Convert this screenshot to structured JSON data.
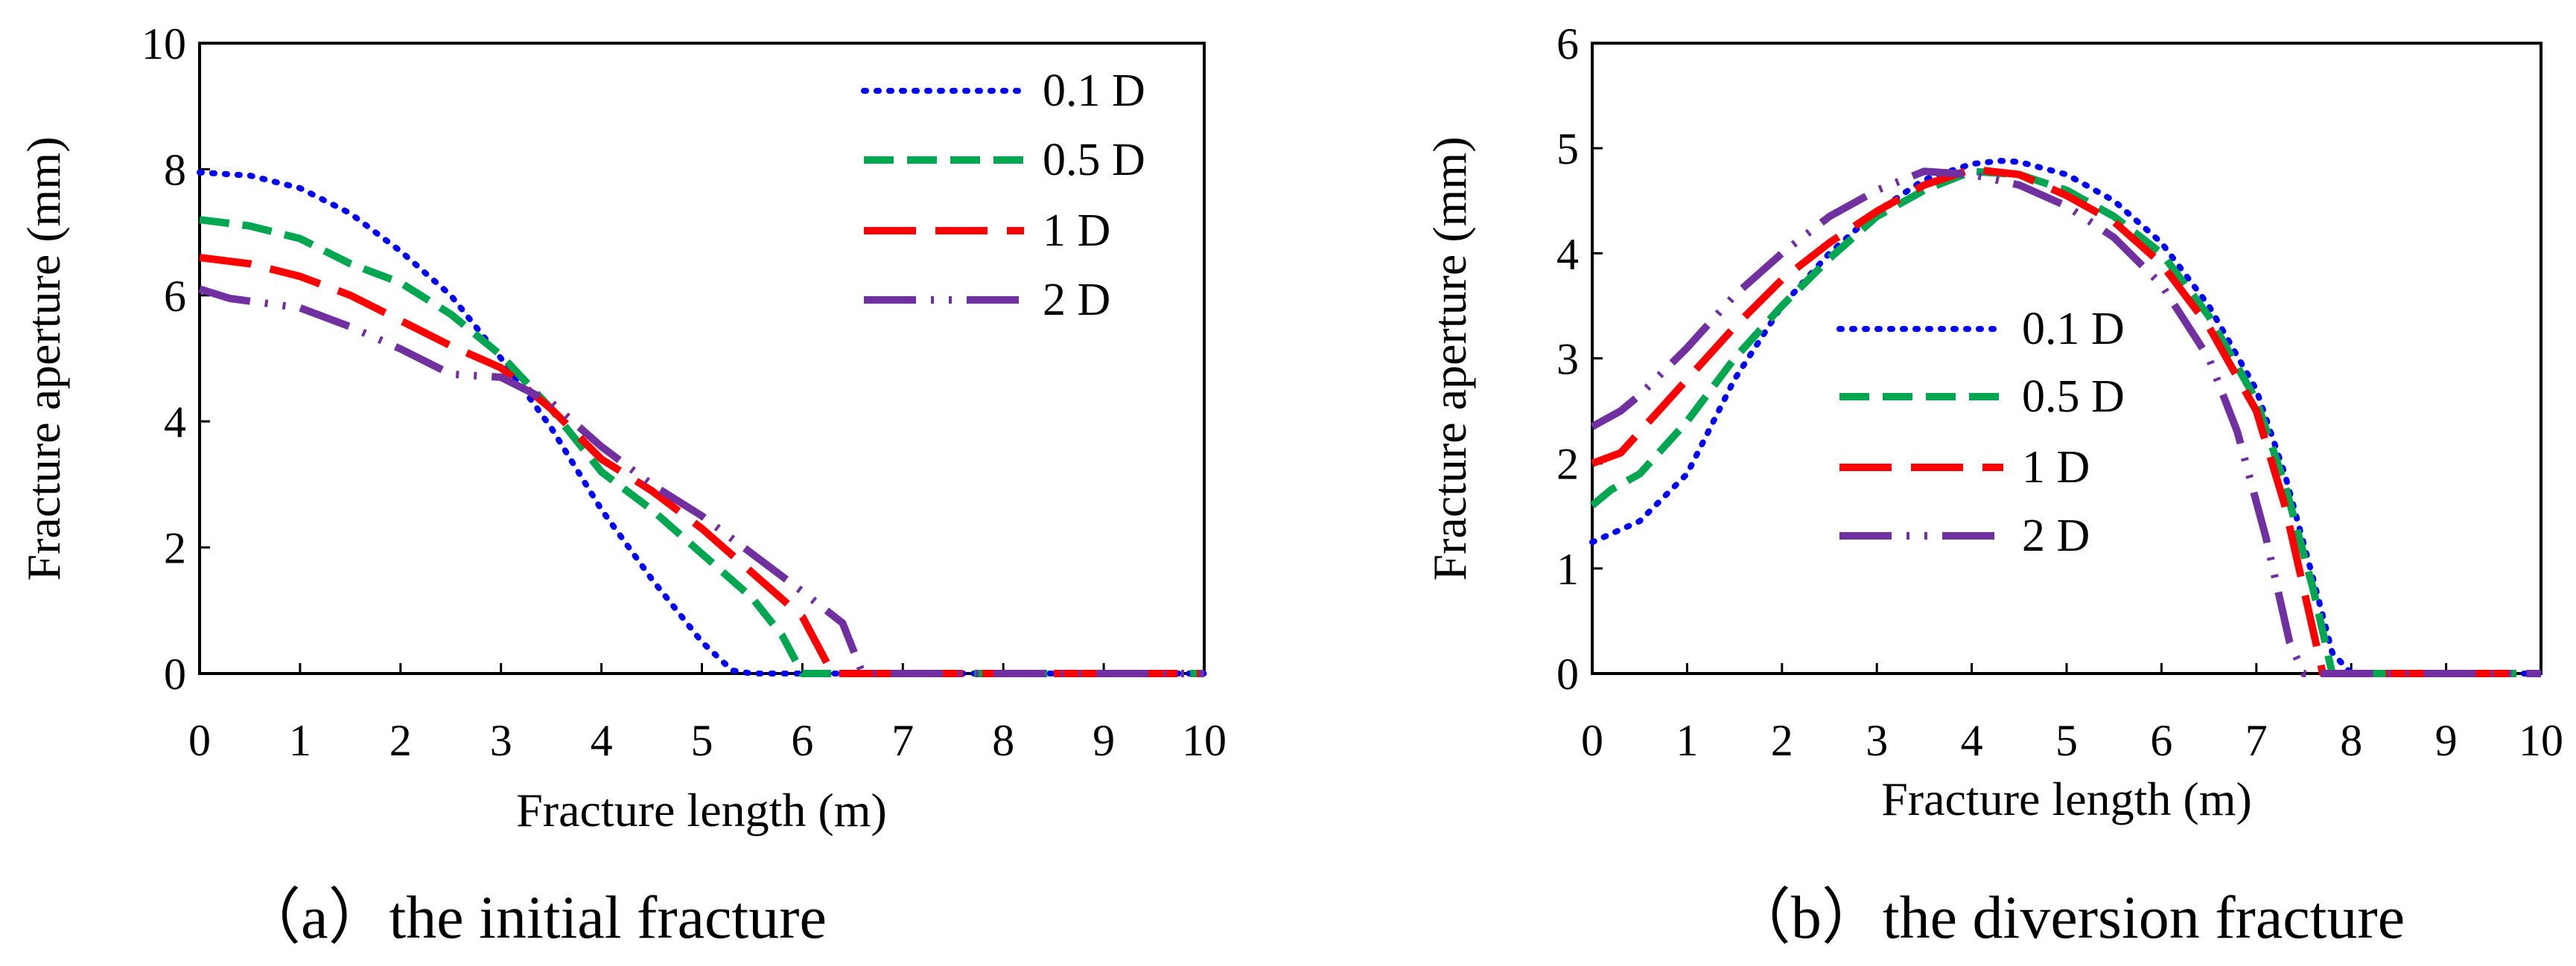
{
  "chart_data": [
    {
      "type": "line",
      "panel_caption": "（a）the initial fracture",
      "xlabel": "Fracture length (m)",
      "ylabel": "Fracture aperture (mm)",
      "xlim": [
        0,
        10
      ],
      "ylim": [
        0,
        10
      ],
      "xticks": [
        "0",
        "1",
        "2",
        "3",
        "4",
        "5",
        "6",
        "7",
        "8",
        "9",
        "10"
      ],
      "yticks": [
        "0",
        "2",
        "4",
        "6",
        "8",
        "10"
      ],
      "legend_position": "top-right",
      "series": [
        {
          "name": "0.1 D",
          "color": "#0000ff",
          "style": "dotted",
          "x": [
            0,
            0.5,
            1,
            1.5,
            2,
            2.5,
            3,
            3.5,
            4,
            4.5,
            5,
            5.3,
            5.5,
            10
          ],
          "y": [
            7.95,
            7.9,
            7.7,
            7.3,
            6.7,
            6.0,
            5.0,
            3.9,
            2.6,
            1.5,
            0.5,
            0.05,
            0,
            0
          ]
        },
        {
          "name": "0.5 D",
          "color": "#00a650",
          "style": "dashed",
          "x": [
            0,
            0.5,
            1,
            1.5,
            2,
            2.5,
            3,
            3.5,
            4,
            4.5,
            5,
            5.5,
            5.8,
            6.0,
            10
          ],
          "y": [
            7.2,
            7.1,
            6.9,
            6.5,
            6.2,
            5.7,
            5.05,
            4.2,
            3.2,
            2.6,
            1.9,
            1.2,
            0.6,
            0,
            0
          ]
        },
        {
          "name": "1 D",
          "color": "#ff0000",
          "style": "longdash",
          "x": [
            0,
            0.5,
            1,
            1.5,
            2,
            2.5,
            3,
            3.5,
            4,
            4.5,
            5,
            5.5,
            6.0,
            6.2,
            6.3,
            10
          ],
          "y": [
            6.6,
            6.5,
            6.3,
            6.0,
            5.6,
            5.2,
            4.85,
            4.2,
            3.4,
            2.9,
            2.3,
            1.6,
            0.9,
            0.3,
            0,
            0
          ]
        },
        {
          "name": "2 D",
          "color": "#7030a0",
          "style": "dashdotdot",
          "x": [
            0,
            0.3,
            1,
            1.5,
            2,
            2.5,
            3,
            3.5,
            4,
            4.5,
            5,
            5.5,
            6.0,
            6.4,
            6.6,
            10
          ],
          "y": [
            6.1,
            5.95,
            5.8,
            5.5,
            5.15,
            4.75,
            4.7,
            4.3,
            3.6,
            3.0,
            2.5,
            1.9,
            1.3,
            0.8,
            0,
            0
          ]
        }
      ]
    },
    {
      "type": "line",
      "panel_caption": "（b）the diversion fracture",
      "xlabel": "Fracture length (m)",
      "ylabel": "Fracture  aperture (mm)",
      "xlim": [
        0,
        10
      ],
      "ylim": [
        0,
        6
      ],
      "xticks": [
        "0",
        "1",
        "2",
        "3",
        "4",
        "5",
        "6",
        "7",
        "8",
        "9",
        "10"
      ],
      "yticks": [
        "0",
        "1",
        "2",
        "3",
        "4",
        "5",
        "6"
      ],
      "legend_position": "center",
      "series": [
        {
          "name": "0.1 D",
          "color": "#0000ff",
          "style": "dotted",
          "x": [
            0,
            0.5,
            1,
            1.5,
            2,
            2.5,
            3,
            3.5,
            4,
            4.3,
            4.5,
            5,
            5.5,
            6,
            6.5,
            7,
            7.3,
            7.6,
            7.8,
            8.0,
            10
          ],
          "y": [
            1.25,
            1.45,
            1.9,
            2.8,
            3.5,
            4.0,
            4.4,
            4.7,
            4.85,
            4.88,
            4.87,
            4.75,
            4.5,
            4.1,
            3.5,
            2.7,
            1.9,
            0.9,
            0.2,
            0,
            0
          ]
        },
        {
          "name": "0.5 D",
          "color": "#00a650",
          "style": "dashed",
          "x": [
            0,
            0.2,
            0.5,
            1,
            1.5,
            2,
            2.5,
            3,
            3.5,
            4,
            4.5,
            5,
            5.5,
            6,
            6.5,
            7,
            7.3,
            7.6,
            7.8,
            10
          ],
          "y": [
            1.6,
            1.75,
            1.9,
            2.4,
            3.0,
            3.5,
            3.95,
            4.35,
            4.6,
            4.78,
            4.75,
            4.6,
            4.35,
            4.0,
            3.4,
            2.6,
            1.8,
            0.8,
            0,
            0
          ]
        },
        {
          "name": "1 D",
          "color": "#ff0000",
          "style": "longdash",
          "x": [
            0,
            0.3,
            0.5,
            1,
            1.5,
            2,
            2.5,
            3,
            3.5,
            4,
            4.5,
            5,
            5.5,
            6,
            6.5,
            7,
            7.3,
            7.55,
            7.7,
            10
          ],
          "y": [
            2.0,
            2.1,
            2.3,
            2.8,
            3.3,
            3.75,
            4.1,
            4.4,
            4.65,
            4.8,
            4.75,
            4.55,
            4.3,
            3.9,
            3.3,
            2.5,
            1.6,
            0.6,
            0,
            0
          ]
        },
        {
          "name": "2 D",
          "color": "#7030a0",
          "style": "dashdotdot",
          "x": [
            0,
            0.3,
            0.5,
            1,
            1.5,
            2,
            2.5,
            3,
            3.5,
            4,
            4.5,
            5,
            5.5,
            6,
            6.5,
            6.8,
            7.1,
            7.35,
            7.5,
            10
          ],
          "y": [
            2.35,
            2.5,
            2.65,
            3.1,
            3.6,
            4.0,
            4.35,
            4.6,
            4.78,
            4.75,
            4.65,
            4.45,
            4.15,
            3.7,
            3.0,
            2.3,
            1.3,
            0.3,
            0,
            0
          ]
        }
      ]
    }
  ]
}
